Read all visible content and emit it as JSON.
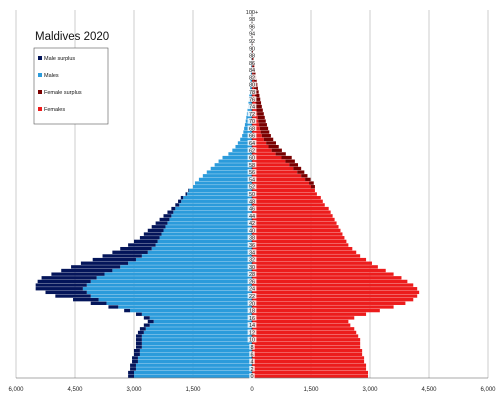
{
  "chart_data": {
    "type": "bar",
    "orientation": "horizontal-population-pyramid",
    "title": "Maldives 2020",
    "xlabel": "",
    "ylabel": "",
    "xlim": [
      -6000,
      6000
    ],
    "x_ticks": [
      -6000,
      -4500,
      -3000,
      -1500,
      0,
      1500,
      3000,
      4500,
      6000
    ],
    "x_tick_labels": [
      "6,000",
      "4,500",
      "3,000",
      "1,500",
      "0",
      "1,500",
      "3,000",
      "4,500",
      "6,000"
    ],
    "age_label_step": 2,
    "grid": true,
    "legend_position": "top-left",
    "categories": [
      "0",
      "1",
      "2",
      "3",
      "4",
      "5",
      "6",
      "7",
      "8",
      "9",
      "10",
      "11",
      "12",
      "13",
      "14",
      "15",
      "16",
      "17",
      "18",
      "19",
      "20",
      "21",
      "22",
      "23",
      "24",
      "25",
      "26",
      "27",
      "28",
      "29",
      "30",
      "31",
      "32",
      "33",
      "34",
      "35",
      "36",
      "37",
      "38",
      "39",
      "40",
      "41",
      "42",
      "43",
      "44",
      "45",
      "46",
      "47",
      "48",
      "49",
      "50",
      "51",
      "52",
      "53",
      "54",
      "55",
      "56",
      "57",
      "58",
      "59",
      "60",
      "61",
      "62",
      "63",
      "64",
      "65",
      "66",
      "67",
      "68",
      "69",
      "70",
      "71",
      "72",
      "73",
      "74",
      "75",
      "76",
      "77",
      "78",
      "79",
      "80",
      "81",
      "82",
      "83",
      "84",
      "85",
      "86",
      "87",
      "88",
      "89",
      "90",
      "91",
      "92",
      "93",
      "94",
      "95",
      "96",
      "97",
      "98",
      "99",
      "100+"
    ],
    "series": [
      {
        "name": "Males",
        "values": [
          3000,
          3000,
          2950,
          2950,
          2900,
          2900,
          2850,
          2850,
          2800,
          2800,
          2800,
          2800,
          2750,
          2700,
          2600,
          2500,
          2600,
          2800,
          3100,
          3400,
          3700,
          3900,
          4100,
          4200,
          4300,
          4200,
          4100,
          3950,
          3750,
          3550,
          3350,
          3150,
          2950,
          2800,
          2650,
          2550,
          2450,
          2400,
          2350,
          2300,
          2250,
          2200,
          2150,
          2100,
          2050,
          2000,
          1950,
          1850,
          1800,
          1750,
          1650,
          1600,
          1500,
          1450,
          1350,
          1250,
          1150,
          1050,
          950,
          850,
          750,
          600,
          500,
          420,
          360,
          300,
          250,
          220,
          200,
          180,
          160,
          145,
          130,
          115,
          100,
          90,
          80,
          70,
          60,
          50,
          45,
          40,
          35,
          30,
          25,
          20,
          16,
          13,
          10,
          8,
          6,
          5,
          4,
          3,
          2,
          2,
          1,
          1,
          1,
          1,
          1
        ]
      },
      {
        "name": "Females",
        "values": [
          2950,
          2950,
          2900,
          2900,
          2850,
          2850,
          2800,
          2800,
          2750,
          2750,
          2750,
          2700,
          2650,
          2600,
          2500,
          2450,
          2600,
          2900,
          3250,
          3600,
          3900,
          4100,
          4200,
          4250,
          4200,
          4100,
          3950,
          3800,
          3600,
          3400,
          3200,
          3050,
          2900,
          2750,
          2650,
          2550,
          2450,
          2400,
          2350,
          2300,
          2250,
          2200,
          2150,
          2100,
          2050,
          2000,
          1950,
          1850,
          1800,
          1750,
          1650,
          1600,
          1500,
          1450,
          1350,
          1250,
          1150,
          1050,
          950,
          850,
          750,
          600,
          500,
          420,
          360,
          300,
          250,
          220,
          200,
          180,
          160,
          145,
          130,
          115,
          100,
          90,
          80,
          70,
          60,
          50,
          45,
          40,
          35,
          30,
          25,
          20,
          16,
          13,
          10,
          8,
          6,
          5,
          4,
          3,
          2,
          2,
          1,
          1,
          1,
          1,
          1
        ]
      },
      {
        "name": "Male surplus",
        "values": [
          150,
          150,
          150,
          150,
          150,
          150,
          150,
          150,
          150,
          150,
          150,
          150,
          150,
          150,
          150,
          150,
          150,
          150,
          150,
          250,
          400,
          650,
          900,
          1050,
          1200,
          1300,
          1350,
          1400,
          1350,
          1300,
          1250,
          1200,
          1100,
          1000,
          900,
          800,
          700,
          600,
          500,
          450,
          400,
          350,
          300,
          250,
          200,
          150,
          100,
          100,
          80,
          60,
          40,
          20,
          0,
          0,
          0,
          0,
          0,
          0,
          0,
          0,
          0,
          0,
          0,
          0,
          0,
          0,
          0,
          0,
          0,
          0,
          0,
          0,
          0,
          0,
          0,
          0,
          0,
          0,
          0,
          0,
          0,
          0,
          0,
          0,
          0,
          0,
          0,
          0,
          0,
          0,
          0,
          0,
          0,
          0,
          0,
          0,
          0,
          0,
          0,
          0,
          0
        ]
      },
      {
        "name": "Female surplus",
        "values": [
          0,
          0,
          0,
          0,
          0,
          0,
          0,
          0,
          0,
          0,
          0,
          0,
          0,
          0,
          0,
          0,
          0,
          0,
          0,
          0,
          0,
          0,
          0,
          0,
          0,
          0,
          0,
          0,
          0,
          0,
          0,
          0,
          0,
          0,
          0,
          0,
          0,
          0,
          0,
          0,
          0,
          0,
          0,
          0,
          0,
          0,
          0,
          0,
          0,
          0,
          0,
          0,
          100,
          120,
          140,
          160,
          180,
          200,
          220,
          240,
          260,
          260,
          260,
          260,
          250,
          240,
          230,
          220,
          210,
          200,
          190,
          180,
          170,
          160,
          150,
          140,
          130,
          120,
          110,
          100,
          90,
          80,
          70,
          60,
          50,
          40,
          30,
          25,
          20,
          15,
          10,
          8,
          6,
          4,
          3,
          2,
          1,
          1,
          1,
          0,
          0
        ]
      }
    ],
    "colors": {
      "males": "#2b9bdb",
      "male_surplus": "#04155a",
      "females": "#ec1c1c",
      "female_surplus": "#7a0000",
      "grid": "#999999",
      "axis": "#000000"
    },
    "legend": [
      {
        "label": "Male surplus",
        "color_key": "male_surplus"
      },
      {
        "label": "Males",
        "color_key": "males"
      },
      {
        "label": "Female surplus",
        "color_key": "female_surplus"
      },
      {
        "label": "Females",
        "color_key": "females"
      }
    ]
  }
}
